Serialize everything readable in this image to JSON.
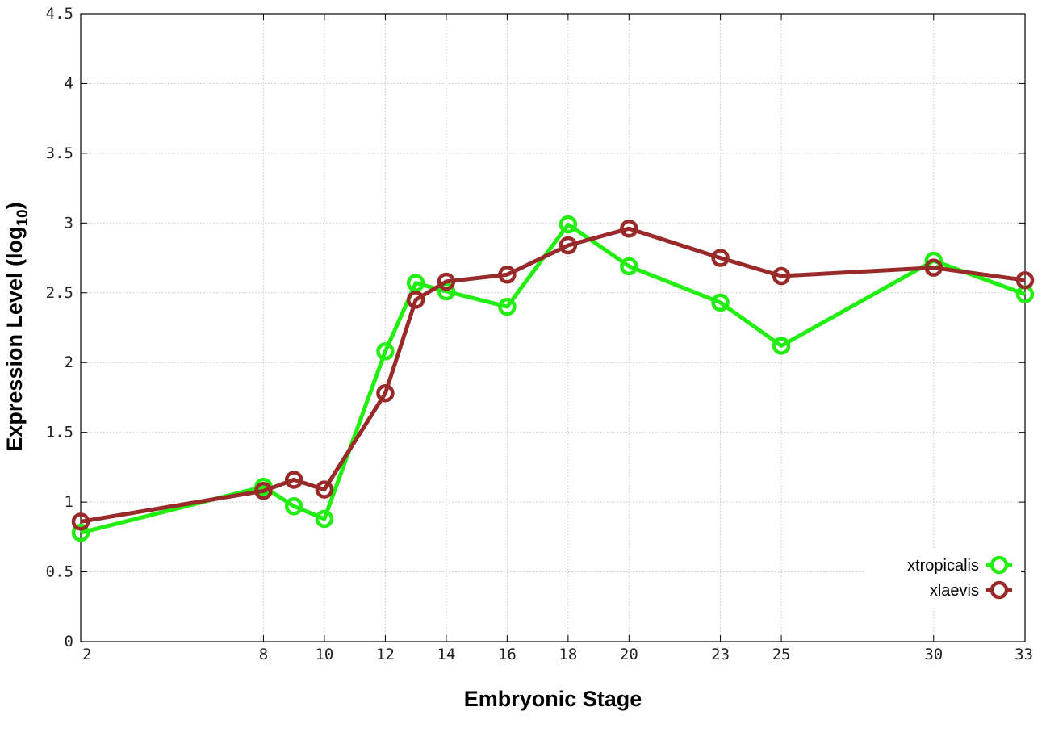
{
  "chart_data": {
    "type": "line",
    "xlabel": "Embryonic Stage",
    "ylabel_main": "Expression Level (log",
    "ylabel_sub": "10",
    "ylabel_close": ")",
    "ylim": [
      0,
      4.5
    ],
    "xlim": [
      2,
      33
    ],
    "y_ticks": [
      "0",
      "0.5",
      "1",
      "1.5",
      "2",
      "2.5",
      "3",
      "3.5",
      "4",
      "4.5"
    ],
    "y_tick_values": [
      0,
      0.5,
      1,
      1.5,
      2,
      2.5,
      3,
      3.5,
      4,
      4.5
    ],
    "x_ticks": [
      "2",
      "8",
      "10",
      "12",
      "14",
      "16",
      "18",
      "20",
      "23",
      "25",
      "30",
      "33"
    ],
    "x_tick_values": [
      2,
      8,
      10,
      12,
      14,
      16,
      18,
      20,
      23,
      25,
      30,
      33
    ],
    "grid": true,
    "legend_position": "bottom-right",
    "series": [
      {
        "name": "xtropicalis",
        "color": "#22ee11",
        "points": [
          {
            "x": 2,
            "y": 0.78
          },
          {
            "x": 8,
            "y": 1.11
          },
          {
            "x": 9,
            "y": 0.97
          },
          {
            "x": 10,
            "y": 0.88
          },
          {
            "x": 12,
            "y": 2.08
          },
          {
            "x": 13,
            "y": 2.57
          },
          {
            "x": 14,
            "y": 2.51
          },
          {
            "x": 16,
            "y": 2.4
          },
          {
            "x": 18,
            "y": 2.99
          },
          {
            "x": 20,
            "y": 2.69
          },
          {
            "x": 23,
            "y": 2.43
          },
          {
            "x": 25,
            "y": 2.12
          },
          {
            "x": 30,
            "y": 2.73
          },
          {
            "x": 33,
            "y": 2.49
          }
        ]
      },
      {
        "name": "xlaevis",
        "color": "#992a2a",
        "points": [
          {
            "x": 2,
            "y": 0.86
          },
          {
            "x": 8,
            "y": 1.08
          },
          {
            "x": 9,
            "y": 1.16
          },
          {
            "x": 10,
            "y": 1.09
          },
          {
            "x": 12,
            "y": 1.78
          },
          {
            "x": 13,
            "y": 2.45
          },
          {
            "x": 14,
            "y": 2.58
          },
          {
            "x": 16,
            "y": 2.63
          },
          {
            "x": 18,
            "y": 2.84
          },
          {
            "x": 20,
            "y": 2.96
          },
          {
            "x": 23,
            "y": 2.75
          },
          {
            "x": 25,
            "y": 2.62
          },
          {
            "x": 30,
            "y": 2.68
          },
          {
            "x": 33,
            "y": 2.59
          }
        ]
      }
    ]
  }
}
